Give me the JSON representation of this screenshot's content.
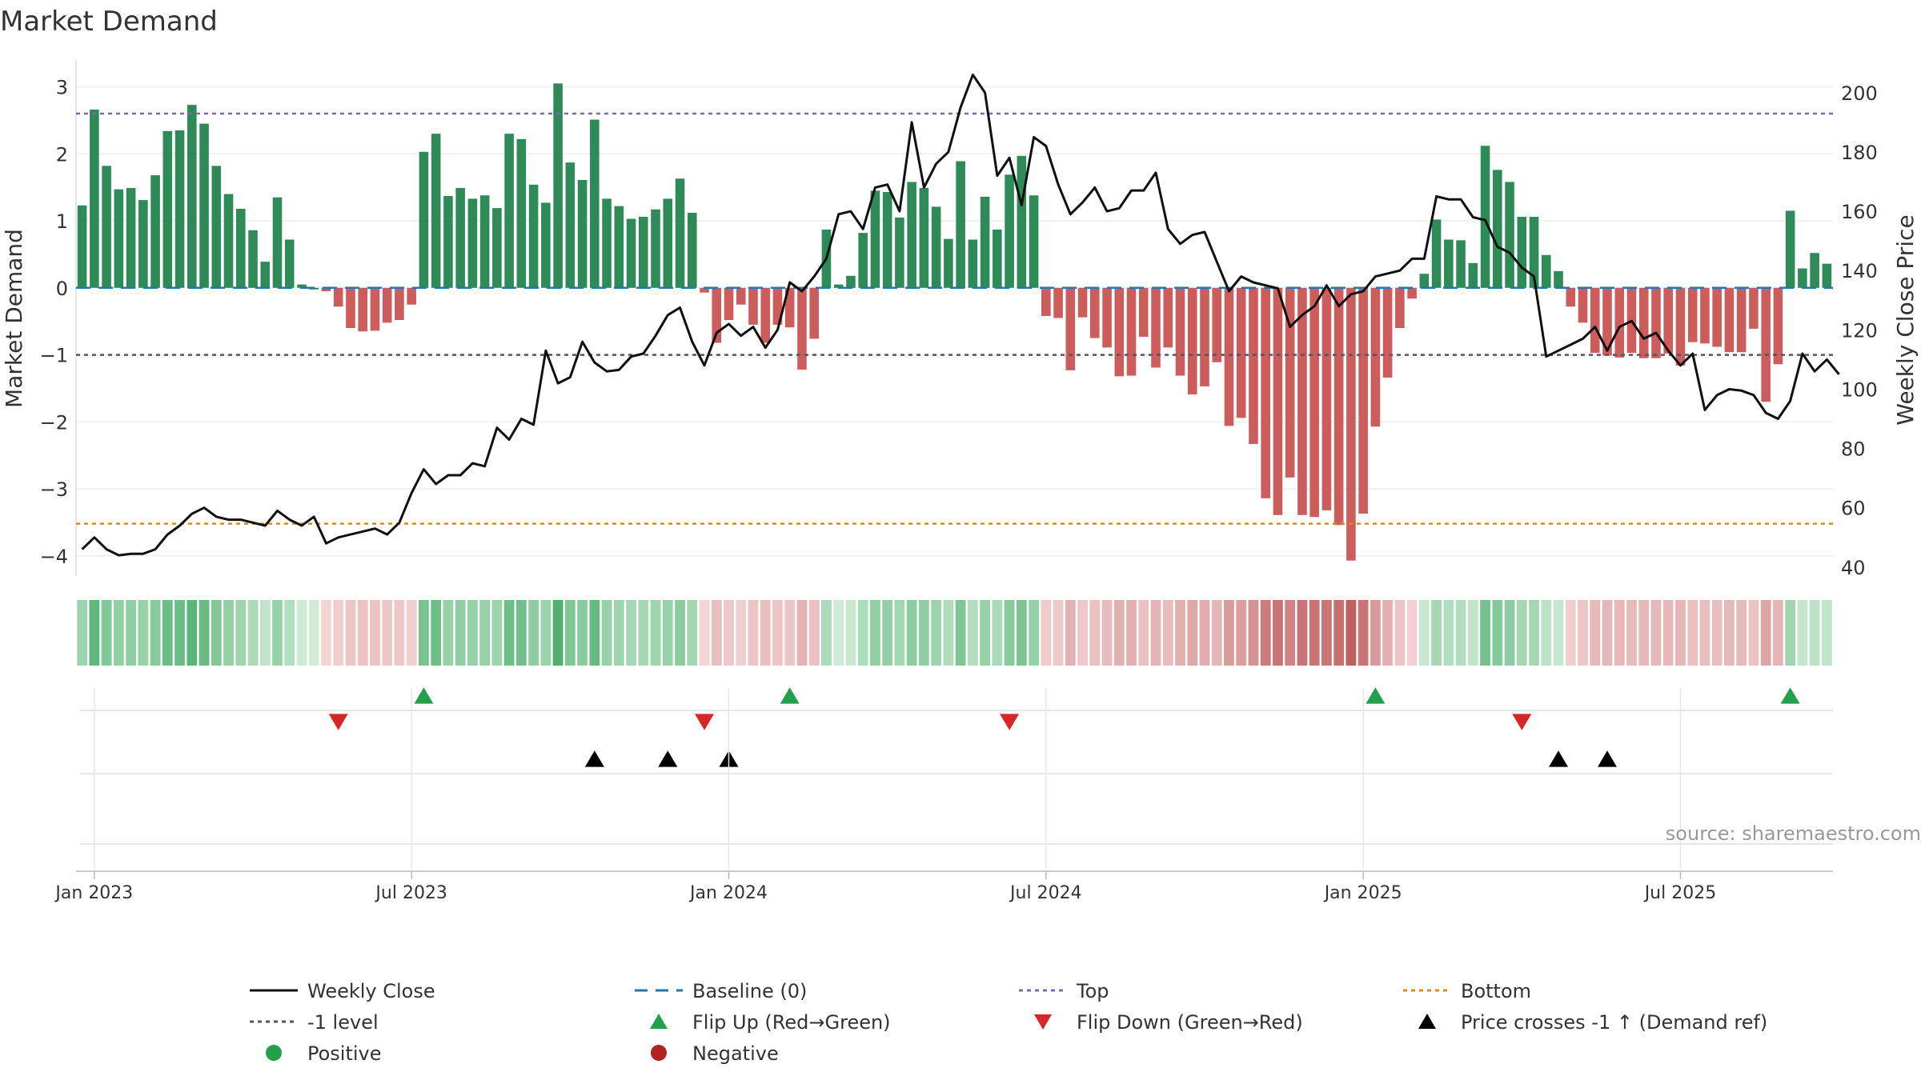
{
  "chart_data": {
    "type": "bar",
    "title": "Market Demand",
    "ylabel": "Market Demand",
    "y2label": "Weekly Close Price",
    "ylim": [
      -4.3,
      3.4
    ],
    "y2lim": [
      37,
      211
    ],
    "yticks": [
      3,
      2,
      1,
      0,
      -1,
      -2,
      -3,
      -4
    ],
    "ytick_labels": [
      "3",
      "2",
      "1",
      "0",
      "−1",
      "−2",
      "−3",
      "−4"
    ],
    "y2ticks": [
      200,
      180,
      160,
      140,
      120,
      100,
      80,
      60,
      40
    ],
    "y2tick_labels": [
      "200",
      "180",
      "160",
      "140",
      "120",
      "100",
      "80",
      "60",
      "40"
    ],
    "xtick_weeks": [
      1,
      27,
      53,
      79,
      105,
      131
    ],
    "xtick_labels": [
      "Jan 2023",
      "Jul 2023",
      "Jan 2024",
      "Jul 2024",
      "Jan 2025",
      "Jul 2025"
    ],
    "top_level": 2.6,
    "bottom_level": -3.52,
    "minus_one_level": -1,
    "week_count": 144,
    "demand_values": [
      1.23,
      2.66,
      1.82,
      1.47,
      1.49,
      1.31,
      1.68,
      2.34,
      2.35,
      2.73,
      2.45,
      1.82,
      1.4,
      1.18,
      0.86,
      0.39,
      1.35,
      0.72,
      0.05,
      0.0,
      -0.05,
      -0.28,
      -0.6,
      -0.65,
      -0.64,
      -0.52,
      -0.48,
      -0.25,
      2.03,
      2.3,
      1.37,
      1.49,
      1.33,
      1.38,
      1.19,
      2.3,
      2.22,
      1.54,
      1.27,
      3.05,
      1.87,
      1.61,
      2.51,
      1.33,
      1.22,
      1.03,
      1.06,
      1.17,
      1.33,
      1.63,
      1.12,
      -0.07,
      -0.82,
      -0.48,
      -0.25,
      -0.55,
      -0.82,
      -0.55,
      -0.59,
      -1.22,
      -0.76,
      0.87,
      0.05,
      0.18,
      0.82,
      1.45,
      1.43,
      1.05,
      1.58,
      1.49,
      1.21,
      0.73,
      1.89,
      0.72,
      1.36,
      0.87,
      1.69,
      1.97,
      1.38,
      -0.42,
      -0.45,
      -1.23,
      -0.44,
      -0.75,
      -0.89,
      -1.32,
      -1.31,
      -0.73,
      -1.19,
      -0.89,
      -1.31,
      -1.59,
      -1.47,
      -1.11,
      -2.06,
      -1.94,
      -2.33,
      -3.14,
      -3.39,
      -2.83,
      -3.39,
      -3.42,
      -3.32,
      -3.54,
      -4.07,
      -3.37,
      -2.07,
      -1.34,
      -0.6,
      -0.16,
      0.21,
      1.02,
      0.72,
      0.71,
      0.37,
      2.12,
      1.76,
      1.58,
      1.06,
      1.06,
      0.49,
      0.25,
      -0.28,
      -0.52,
      -0.97,
      -1.01,
      -1.04,
      -0.97,
      -1.05,
      -1.05,
      -0.98,
      -1.16,
      -0.81,
      -0.83,
      -0.88,
      -0.96,
      -0.96,
      -0.61,
      -1.7,
      -1.14,
      1.15,
      0.29,
      0.52,
      0.36
    ],
    "close_values": [
      46.0,
      50.0,
      46.0,
      44.0,
      44.5,
      44.5,
      46.0,
      51.0,
      54.0,
      58.0,
      60.0,
      57.0,
      56.0,
      56.0,
      55.0,
      54.0,
      59.0,
      56.0,
      54.0,
      57.0,
      48.0,
      50.0,
      51.0,
      52.0,
      53.0,
      51.0,
      55.0,
      65.0,
      73.0,
      68.0,
      71.0,
      71.0,
      75.0,
      74.0,
      87.0,
      83.0,
      90.0,
      88.0,
      113.0,
      102.0,
      104.0,
      116.0,
      109.0,
      106.0,
      106.5,
      111.0,
      112.0,
      118.0,
      125.0,
      127.5,
      116.0,
      108.0,
      119.0,
      122.0,
      118.0,
      121.0,
      114.0,
      120.0,
      136.0,
      133.0,
      138.0,
      144.0,
      159.0,
      160.0,
      154.0,
      168.0,
      169.0,
      160.0,
      190.0,
      168.0,
      176.0,
      180.0,
      195.0,
      206.0,
      200.0,
      172.0,
      178.0,
      162.0,
      185.0,
      182.0,
      169.0,
      159.0,
      163.0,
      168.0,
      160.0,
      161.0,
      167.0,
      167.0,
      173.0,
      154.0,
      149.0,
      152.0,
      153.0,
      143.0,
      133.0,
      138.0,
      136.0,
      135.0,
      134.0,
      121.0,
      125.0,
      128.0,
      135.0,
      128.0,
      132.0,
      133.0,
      138.0,
      139.0,
      140.0,
      144.0,
      144.0,
      165.0,
      164.0,
      164.0,
      158.0,
      157.0,
      148.0,
      146.0,
      141.0,
      138.0,
      111.0,
      113.0,
      115.0,
      117.0,
      121.0,
      113.0,
      121.0,
      123.0,
      117.0,
      119.0,
      113.0,
      108.0,
      112.0,
      93.0,
      98.0,
      100.0,
      99.5,
      98.0,
      92.0,
      90.0,
      96.0,
      112.0,
      106.0,
      110.0,
      105.0
    ],
    "flip_up_weeks": [
      28,
      58,
      106,
      140
    ],
    "flip_down_weeks": [
      21,
      51,
      76,
      118
    ],
    "price_cross_weeks": [
      42,
      48,
      53,
      121,
      125
    ],
    "legend": [
      {
        "label": "Weekly Close",
        "marker": "line"
      },
      {
        "label": "Baseline (0)",
        "marker": "dash"
      },
      {
        "label": "Top",
        "marker": "dot-purple"
      },
      {
        "label": "Bottom",
        "marker": "dot-orange"
      },
      {
        "label": "-1 level",
        "marker": "dot-gray"
      },
      {
        "label": "Flip Up (Red→Green)",
        "marker": "tri-up-green"
      },
      {
        "label": "Flip Down (Green→Red)",
        "marker": "tri-down-red"
      },
      {
        "label": "Price crosses -1 ↑ (Demand ref)",
        "marker": "tri-up-black"
      },
      {
        "label": "Positive",
        "marker": "circle-green"
      },
      {
        "label": "Negative",
        "marker": "circle-red"
      }
    ],
    "source_note": "source: sharemaestro.com",
    "colors": {
      "positive": "#2e8b57",
      "negative": "#cd5c5c",
      "close_line": "#111111",
      "baseline": "#1f77b4",
      "top_line": "#7b68b8",
      "bottom_line": "#e08a1e",
      "minus_one_line": "#555566",
      "flip_up": "#22a04b",
      "flip_down": "#d62728",
      "price_cross": "#000000",
      "legend_positive": "#22a04b",
      "legend_negative": "#b22222"
    }
  }
}
